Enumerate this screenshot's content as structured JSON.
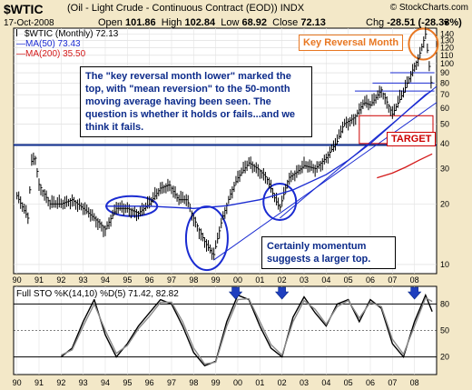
{
  "header": {
    "symbol": "$WTIC",
    "name": "(Oil - Light Crude - Continuous Contract (EOD))",
    "exchange": "INDX",
    "source": "© StockCharts.com",
    "date": "17-Oct-2008",
    "open_label": "Open",
    "open": "101.86",
    "high_label": "High",
    "high": "102.84",
    "low_label": "Low",
    "low": "68.92",
    "close_label": "Close",
    "close": "72.13",
    "chg_label": "Chg",
    "chg": "-28.51 (-28.33%)",
    "chg_arrow": "▼"
  },
  "price_legend": {
    "main": "$WTIC (Monthly) 72.13",
    "ma50": "MA(50) 73.43",
    "ma200": "MA(200) 35.50"
  },
  "annotations": {
    "top_note": "The \"key reversal month lower\" marked the top, with \"mean reversion\" to the 50-month moving average having been seen.   The question is whether it holds or fails...and we think it fails.",
    "momentum_note": "Certainly momentum suggests a larger top.",
    "key_reversal": "Key Reversal Month",
    "target": "TARGET"
  },
  "stoch_legend": "Full STO %K(14,10) %D(5) 71.42, 82.82",
  "colors": {
    "background": "#f3e8c8",
    "plot_bg": "#ffffff",
    "bars": "#000000",
    "ma50": "#1a2bd1",
    "ma200": "#d41a1a",
    "annotation_blue": "#0b2a8a",
    "orange": "#e87722",
    "target_red": "#cc0000"
  },
  "chart_data": [
    {
      "type": "ohlc",
      "scale": "log",
      "x_years": [
        "90",
        "91",
        "92",
        "93",
        "94",
        "95",
        "96",
        "97",
        "98",
        "99",
        "00",
        "01",
        "02",
        "03",
        "04",
        "05",
        "06",
        "07",
        "08"
      ],
      "y_ticks": [
        10,
        20,
        30,
        40,
        50,
        60,
        70,
        80,
        90,
        100,
        110,
        120,
        130,
        140
      ],
      "ylim": [
        9,
        150
      ],
      "x": [
        1990.0,
        1990.5,
        1990.67,
        1990.83,
        1991.0,
        1991.5,
        1992.0,
        1992.5,
        1993.0,
        1993.5,
        1994.0,
        1994.5,
        1995.0,
        1995.5,
        1996.0,
        1996.5,
        1996.9,
        1997.3,
        1997.7,
        1998.0,
        1998.5,
        1998.9,
        1999.3,
        1999.7,
        2000.0,
        2000.5,
        2000.9,
        2001.3,
        2001.7,
        2001.9,
        2002.3,
        2002.7,
        2003.0,
        2003.5,
        2004.0,
        2004.5,
        2004.8,
        2005.3,
        2005.7,
        2006.0,
        2006.5,
        2007.0,
        2007.5,
        2007.9,
        2008.2,
        2008.5,
        2008.8
      ],
      "close": [
        22,
        17,
        33,
        34,
        25,
        20,
        20,
        21,
        19,
        17,
        15,
        19,
        19,
        18,
        20,
        24,
        25,
        21,
        21,
        17,
        13,
        11,
        17,
        23,
        27,
        32,
        30,
        27,
        21,
        19,
        27,
        29,
        31,
        30,
        34,
        41,
        50,
        54,
        64,
        62,
        74,
        56,
        72,
        92,
        108,
        140,
        72
      ],
      "series": [
        {
          "name": "MA(50) 73.43",
          "x": [
            1994.0,
            1996.0,
            1998.0,
            1999.5,
            2001.0,
            2002.5,
            2004.0,
            2005.0,
            2006.0,
            2007.0,
            2007.8,
            2008.5,
            2008.8
          ],
          "values": [
            19.5,
            19.5,
            19,
            19.6,
            21,
            23.5,
            28,
            33,
            40,
            50,
            60,
            70,
            73.43
          ]
        },
        {
          "name": "MA(200) 35.50",
          "x": [
            2006.3,
            2007.0,
            2007.6,
            2008.2,
            2008.8
          ],
          "values": [
            27,
            28.5,
            30.5,
            33,
            35.5
          ]
        }
      ]
    },
    {
      "type": "line",
      "title": "Full STO %K(14,10) %D(5) 71.42, 82.82",
      "ylim": [
        0,
        100
      ],
      "y_ticks": [
        20,
        50,
        80
      ],
      "x": [
        1992.0,
        1992.5,
        1993.0,
        1993.5,
        1994.0,
        1994.5,
        1995.0,
        1995.5,
        1996.0,
        1996.5,
        1997.0,
        1997.5,
        1998.0,
        1998.5,
        1999.0,
        1999.5,
        2000.0,
        2000.5,
        2001.0,
        2001.5,
        2002.0,
        2002.5,
        2003.0,
        2003.5,
        2004.0,
        2004.5,
        2005.0,
        2005.5,
        2006.0,
        2006.5,
        2007.0,
        2007.5,
        2008.0,
        2008.5,
        2008.8
      ],
      "series": [
        {
          "name": "%K",
          "values": [
            20,
            30,
            60,
            85,
            45,
            20,
            35,
            55,
            70,
            85,
            80,
            55,
            25,
            10,
            15,
            60,
            90,
            85,
            55,
            30,
            20,
            65,
            88,
            70,
            55,
            80,
            85,
            60,
            85,
            75,
            35,
            20,
            60,
            90,
            71.42
          ]
        },
        {
          "name": "%D",
          "values": [
            22,
            28,
            55,
            80,
            50,
            24,
            33,
            52,
            66,
            82,
            82,
            60,
            30,
            12,
            14,
            55,
            85,
            86,
            60,
            34,
            22,
            60,
            84,
            74,
            57,
            77,
            84,
            64,
            82,
            77,
            40,
            23,
            55,
            87,
            82.82
          ]
        }
      ],
      "markers_at_x": [
        1999.9,
        2002.0,
        2008.0
      ]
    }
  ]
}
